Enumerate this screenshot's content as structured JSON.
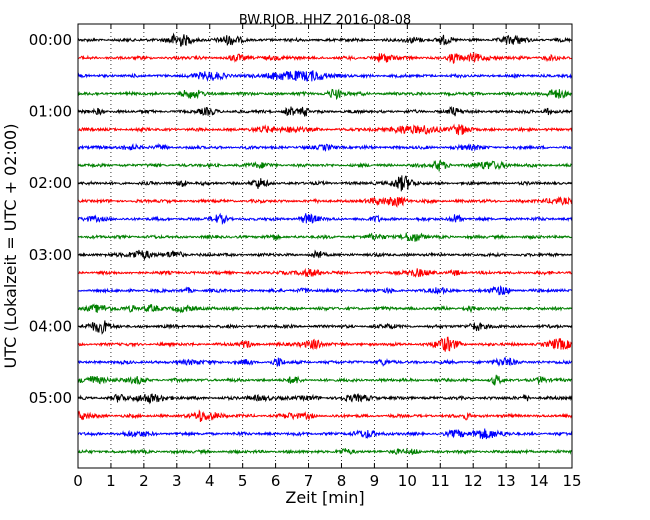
{
  "chart_data": {
    "type": "line",
    "title": "BW.RJOB..HHZ 2016-08-08",
    "xlabel": "Zeit  [min]",
    "ylabel": "UTC (Lokalzeit = UTC + 02:00)",
    "xlim": [
      0,
      15
    ],
    "x_ticks": [
      "0",
      "1",
      "2",
      "3",
      "4",
      "5",
      "6",
      "7",
      "8",
      "9",
      "10",
      "11",
      "12",
      "13",
      "14",
      "15"
    ],
    "y_tick_labels": [
      "00:00",
      "01:00",
      "02:00",
      "03:00",
      "04:00",
      "05:00"
    ],
    "grid": true,
    "trace_count": 24,
    "trace_interval_minutes": 15,
    "trace_colors": [
      "#000000",
      "#ff0000",
      "#0000ff",
      "#008000"
    ]
  }
}
